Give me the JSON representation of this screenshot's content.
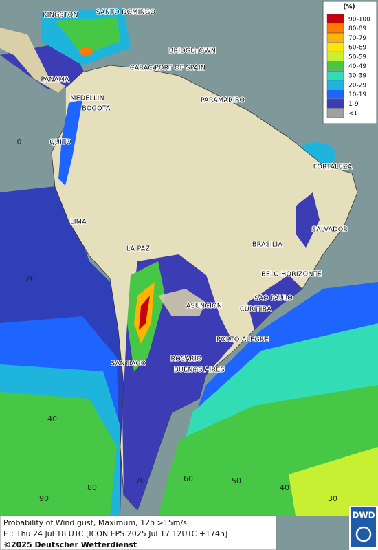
{
  "map": {
    "legend": {
      "title": "(%)",
      "items": [
        {
          "label": "90-100",
          "color": "#c8000a"
        },
        {
          "label": "80-89",
          "color": "#ff7a00"
        },
        {
          "label": "70-79",
          "color": "#ffb400"
        },
        {
          "label": "60-69",
          "color": "#ffe600"
        },
        {
          "label": "50-59",
          "color": "#c8f032"
        },
        {
          "label": "40-49",
          "color": "#46c846"
        },
        {
          "label": "30-39",
          "color": "#32dcb4"
        },
        {
          "label": "20-29",
          "color": "#1eb4dc"
        },
        {
          "label": "10-19",
          "color": "#1e64ff"
        },
        {
          "label": "1-9",
          "color": "#3c3cb4"
        },
        {
          "label": "<1",
          "color": "#a0a0a0"
        }
      ]
    },
    "cities": [
      "KINGSTON",
      "SANTO DOMINGO",
      "BRIDGETOWN",
      "CARACAS",
      "PORT OF SPAIN",
      "PANAMA",
      "MEDELLIN",
      "BOGOTA",
      "PARAMARIBO",
      "QUITO",
      "FORTALEZA",
      "LIMA",
      "SALVADOR",
      "BRASILIA",
      "LA PAZ",
      "BELO HORIZONTE",
      "ASUNCION",
      "SAO PAULO",
      "CURITIBA",
      "PORTO ALEGRE",
      "ROSARIO",
      "SANTIAGO",
      "BUENOS AIRES"
    ],
    "lat_labels": [
      0,
      20,
      40
    ],
    "lon_labels": [
      90,
      80,
      70,
      60,
      50,
      40,
      30
    ],
    "caption": [
      "Probability of Wind gust, Maximum, 12h >15m/s",
      "FT: Thu 24 Jul 18 UTC [ICON EPS 2025 Jul 17 12UTC +174h]",
      "©2025 Deutscher Wetterdienst"
    ],
    "logo": "DWD"
  }
}
